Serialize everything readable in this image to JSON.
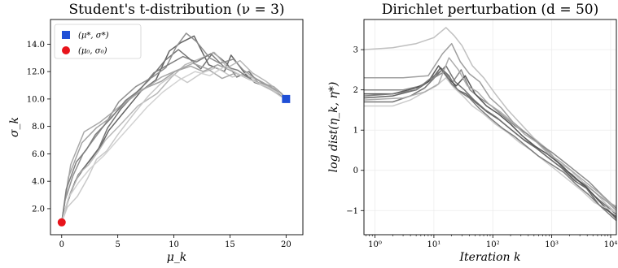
{
  "chart_data": [
    {
      "type": "line",
      "title": "Student's t-distribution (ν = 3)",
      "xlabel": "μ_k",
      "ylabel": "σ_k",
      "xlim": [
        -1,
        21.5
      ],
      "ylim": [
        0.1,
        15.8
      ],
      "xticks": [
        0,
        5,
        10,
        15,
        20
      ],
      "xtick_labels": [
        "0",
        "5",
        "10",
        "15",
        "20"
      ],
      "yticks": [
        2,
        4,
        6,
        8,
        10,
        12,
        14
      ],
      "ytick_labels": [
        "2.0",
        "4.0",
        "6.0",
        "8.0",
        "10.0",
        "12.0",
        "14.0"
      ],
      "grid": false,
      "legend_position": "top-left",
      "markers": [
        {
          "label": "(μ*, σ*)",
          "x": 20,
          "y": 10,
          "shape": "square",
          "color": "#1f4fd6"
        },
        {
          "label": "(μ₀, σ₀)",
          "x": 0,
          "y": 1,
          "shape": "circle",
          "color": "#e8141b"
        }
      ],
      "series": [
        {
          "color": "#5c5c5c",
          "x": [
            0,
            0.2,
            0.8,
            1.5,
            2.6,
            3.5,
            4.2,
            5.6,
            7.1,
            8.4,
            9.6,
            10.6,
            11.8,
            12.3,
            13.1,
            14.5,
            15.1,
            16.4,
            17.2,
            18.3,
            19.1,
            20
          ],
          "y": [
            1,
            1.6,
            3.2,
            4.5,
            5.6,
            6.6,
            7.7,
            9.1,
            10.6,
            11.4,
            13.5,
            14.1,
            14.6,
            13.8,
            12.5,
            12.0,
            13.2,
            11.8,
            11.2,
            10.9,
            10.6,
            10
          ]
        },
        {
          "color": "#6e6e6e",
          "x": [
            0,
            0.4,
            1.2,
            2.1,
            3.3,
            4.1,
            5.3,
            6.2,
            7.8,
            9.2,
            10.4,
            11.3,
            12.4,
            13.5,
            14.7,
            15.6,
            16.7,
            17.5,
            18.6,
            19.4,
            20
          ],
          "y": [
            1,
            2.2,
            4.0,
            5.1,
            6.4,
            7.9,
            9.3,
            10.1,
            11.4,
            12.8,
            13.6,
            13.0,
            12.2,
            13.4,
            12.6,
            11.6,
            12.0,
            11.2,
            10.7,
            10.3,
            10
          ]
        },
        {
          "color": "#8a8a8a",
          "x": [
            0,
            0.3,
            1.0,
            1.9,
            2.8,
            3.9,
            5.1,
            6.6,
            8.1,
            9.3,
            10.2,
            11.1,
            12.0,
            13.2,
            14.1,
            15.3,
            16.2,
            17.1,
            18.0,
            18.9,
            19.6,
            20
          ],
          "y": [
            1,
            2.6,
            4.4,
            6.0,
            7.0,
            8.2,
            9.8,
            10.9,
            11.6,
            12.3,
            13.8,
            14.8,
            14.2,
            13.0,
            12.6,
            12.9,
            12.1,
            11.6,
            11.1,
            10.9,
            10.4,
            10
          ]
        },
        {
          "color": "#9e9e9e",
          "x": [
            0,
            0.6,
            1.8,
            3.1,
            4.3,
            5.8,
            7.2,
            8.9,
            10.1,
            11.5,
            12.6,
            13.9,
            15.0,
            16.1,
            17.3,
            18.4,
            19.2,
            20
          ],
          "y": [
            1,
            4.3,
            6.8,
            7.9,
            8.6,
            9.8,
            10.7,
            11.3,
            12.0,
            12.4,
            12.0,
            12.5,
            12.1,
            11.7,
            11.5,
            11.0,
            10.6,
            10
          ]
        },
        {
          "color": "#b3b3b3",
          "x": [
            0,
            0.7,
            1.6,
            2.4,
            3.2,
            3.9,
            5.2,
            6.8,
            8.5,
            9.8,
            11.0,
            12.2,
            13.6,
            14.8,
            15.9,
            17.0,
            18.2,
            19.0,
            20
          ],
          "y": [
            1,
            3.0,
            4.6,
            5.2,
            6.1,
            7.0,
            8.1,
            9.5,
            10.4,
            11.6,
            12.5,
            12.9,
            13.4,
            12.3,
            12.8,
            11.9,
            11.3,
            10.8,
            10
          ]
        },
        {
          "color": "#c6c6c6",
          "x": [
            0,
            0.5,
            1.4,
            2.3,
            3.1,
            4.0,
            5.0,
            6.4,
            7.7,
            8.8,
            10.0,
            11.2,
            12.5,
            13.8,
            15.2,
            16.5,
            17.8,
            18.8,
            19.5,
            20
          ],
          "y": [
            1,
            2.1,
            2.9,
            4.2,
            5.6,
            6.2,
            7.4,
            8.9,
            10.2,
            11.1,
            11.8,
            11.2,
            11.9,
            12.3,
            11.6,
            11.9,
            11.0,
            10.6,
            10.2,
            10
          ]
        },
        {
          "color": "#a3a3a3",
          "x": [
            0,
            0.8,
            2.0,
            3.4,
            4.8,
            6.0,
            7.5,
            8.9,
            10.3,
            11.7,
            13.0,
            14.3,
            15.5,
            16.8,
            17.9,
            19.0,
            20
          ],
          "y": [
            1,
            5.2,
            7.6,
            8.3,
            9.2,
            10.0,
            10.8,
            11.6,
            12.1,
            12.6,
            12.2,
            11.5,
            11.9,
            11.4,
            11.1,
            10.7,
            10
          ]
        },
        {
          "color": "#7a7a7a",
          "x": [
            0,
            0.4,
            1.3,
            2.2,
            3.0,
            4.4,
            5.7,
            7.0,
            8.2,
            9.5,
            10.8,
            12.0,
            13.3,
            14.4,
            15.7,
            16.9,
            18.0,
            19.2,
            20
          ],
          "y": [
            1,
            3.4,
            5.4,
            6.3,
            7.4,
            8.6,
            9.9,
            10.7,
            11.9,
            12.5,
            13.1,
            12.7,
            13.3,
            12.4,
            12.1,
            11.4,
            11.0,
            10.5,
            10
          ]
        },
        {
          "color": "#d0d0d0",
          "x": [
            0,
            0.6,
            1.5,
            2.5,
            3.8,
            5.1,
            6.3,
            7.6,
            9.0,
            10.5,
            11.9,
            13.2,
            14.6,
            15.8,
            17.1,
            18.3,
            19.4,
            20
          ],
          "y": [
            1,
            2.8,
            3.9,
            4.9,
            5.9,
            7.1,
            8.2,
            9.4,
            10.5,
            11.4,
            12.0,
            11.7,
            12.4,
            11.8,
            11.3,
            10.9,
            10.4,
            10
          ]
        }
      ]
    },
    {
      "type": "line",
      "title": "Dirichlet perturbation (d = 50)",
      "xlabel": "Iteration k",
      "ylabel": "log dist(η_k, η*)",
      "xscale": "log",
      "xlim": [
        0.65,
        12500
      ],
      "ylim": [
        -1.6,
        3.75
      ],
      "xticks": [
        1,
        10,
        100,
        1000,
        10000
      ],
      "xtick_labels": [
        "10⁰",
        "10¹",
        "10²",
        "10³",
        "10⁴"
      ],
      "yticks": [
        -1,
        0,
        1,
        2,
        3
      ],
      "ytick_labels": [
        "−1",
        "0",
        "1",
        "2",
        "3"
      ],
      "grid": true,
      "series": [
        {
          "color": "#bdbdbd",
          "x": [
            0.65,
            2,
            5,
            10,
            16,
            22,
            30,
            45,
            70,
            110,
            180,
            300,
            500,
            800,
            1300,
            2100,
            3400,
            5500,
            8500,
            12500
          ],
          "y": [
            3.0,
            3.05,
            3.15,
            3.3,
            3.55,
            3.35,
            3.1,
            2.6,
            2.3,
            1.9,
            1.5,
            1.15,
            0.8,
            0.55,
            0.2,
            0.0,
            -0.3,
            -0.55,
            -0.85,
            -1.05
          ]
        },
        {
          "color": "#9a9a9a",
          "x": [
            0.65,
            3,
            8,
            14,
            20,
            28,
            40,
            60,
            90,
            140,
            220,
            350,
            560,
            900,
            1450,
            2300,
            3700,
            6000,
            9000,
            12500
          ],
          "y": [
            2.3,
            2.3,
            2.35,
            2.9,
            3.15,
            2.7,
            2.4,
            2.2,
            1.8,
            1.55,
            1.2,
            0.95,
            0.7,
            0.45,
            0.1,
            -0.2,
            -0.35,
            -0.6,
            -0.8,
            -1.0
          ]
        },
        {
          "color": "#5e5e5e",
          "x": [
            0.65,
            2,
            5,
            9,
            13,
            18,
            25,
            35,
            50,
            80,
            130,
            210,
            340,
            550,
            900,
            1500,
            2400,
            3900,
            6300,
            12500
          ],
          "y": [
            1.8,
            1.85,
            2.0,
            2.25,
            2.55,
            2.35,
            2.0,
            1.9,
            1.7,
            1.45,
            1.25,
            1.0,
            0.75,
            0.55,
            0.3,
            0.05,
            -0.25,
            -0.45,
            -0.85,
            -1.15
          ]
        },
        {
          "color": "#6f6f6f",
          "x": [
            0.65,
            2,
            4,
            7,
            11,
            16,
            23,
            33,
            48,
            75,
            120,
            190,
            310,
            500,
            820,
            1350,
            2200,
            3600,
            6000,
            12500
          ],
          "y": [
            1.7,
            1.7,
            1.85,
            2.05,
            2.35,
            2.6,
            2.2,
            2.0,
            1.75,
            1.5,
            1.3,
            1.05,
            0.8,
            0.6,
            0.35,
            0.1,
            -0.1,
            -0.4,
            -0.7,
            -1.1
          ]
        },
        {
          "color": "#858585",
          "x": [
            0.65,
            3,
            6,
            10,
            15,
            21,
            29,
            41,
            60,
            95,
            150,
            240,
            390,
            630,
            1000,
            1650,
            2700,
            4400,
            7000,
            12500
          ],
          "y": [
            2.0,
            2.0,
            2.1,
            2.3,
            2.45,
            2.2,
            2.5,
            2.0,
            1.8,
            1.6,
            1.35,
            1.1,
            0.9,
            0.65,
            0.45,
            0.2,
            -0.05,
            -0.3,
            -0.6,
            -0.95
          ]
        },
        {
          "color": "#4f4f4f",
          "x": [
            0.65,
            2,
            5,
            8,
            12,
            17,
            24,
            34,
            50,
            78,
            125,
            200,
            320,
            520,
            850,
            1400,
            2300,
            3800,
            6200,
            12500
          ],
          "y": [
            1.9,
            1.9,
            2.05,
            2.2,
            2.6,
            2.3,
            2.1,
            2.35,
            1.9,
            1.6,
            1.4,
            1.15,
            0.85,
            0.6,
            0.4,
            0.15,
            -0.15,
            -0.4,
            -0.75,
            -1.2
          ]
        },
        {
          "color": "#c8c8c8",
          "x": [
            0.65,
            2,
            4,
            7,
            11,
            16,
            22,
            31,
            45,
            70,
            110,
            175,
            280,
            450,
            730,
            1200,
            1950,
            3200,
            5300,
            12500
          ],
          "y": [
            1.6,
            1.6,
            1.75,
            1.95,
            2.1,
            2.3,
            2.05,
            1.85,
            1.6,
            1.4,
            1.15,
            0.95,
            0.7,
            0.5,
            0.25,
            0.0,
            -0.25,
            -0.5,
            -0.8,
            -1.05
          ]
        },
        {
          "color": "#a8a8a8",
          "x": [
            0.65,
            3,
            7,
            12,
            18,
            26,
            37,
            55,
            85,
            135,
            215,
            345,
            555,
            890,
            1450,
            2350,
            3800,
            6200,
            9500,
            12500
          ],
          "y": [
            1.75,
            1.8,
            1.95,
            2.15,
            2.8,
            2.5,
            2.1,
            1.95,
            1.65,
            1.45,
            1.2,
            0.9,
            0.7,
            0.4,
            0.2,
            -0.05,
            -0.3,
            -0.55,
            -0.8,
            -0.9
          ]
        },
        {
          "color": "#777777",
          "x": [
            0.65,
            2,
            5,
            9,
            14,
            20,
            28,
            40,
            58,
            90,
            145,
            230,
            370,
            600,
            980,
            1600,
            2600,
            4200,
            6800,
            12500
          ],
          "y": [
            1.85,
            1.9,
            2.0,
            2.3,
            2.5,
            2.15,
            1.95,
            1.8,
            1.55,
            1.3,
            1.05,
            0.85,
            0.6,
            0.35,
            0.15,
            -0.05,
            -0.35,
            -0.6,
            -0.9,
            -1.25
          ]
        }
      ]
    }
  ]
}
